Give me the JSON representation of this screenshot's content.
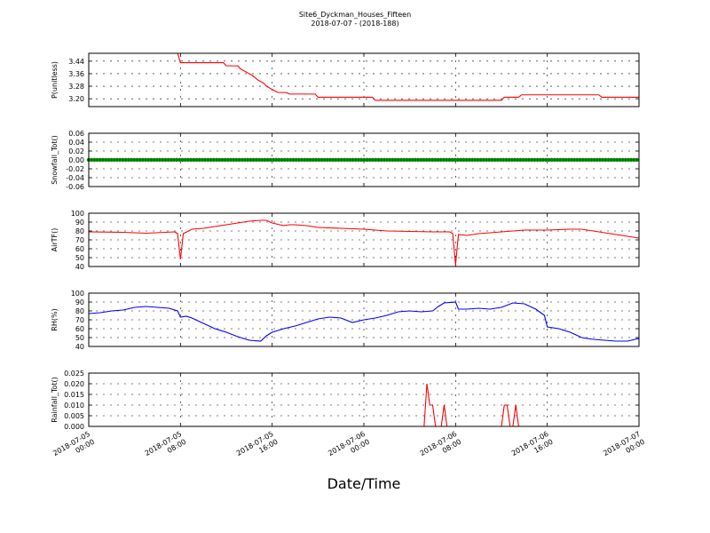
{
  "chart_data": {
    "type": "line",
    "title": "Site6_Dyckman_Houses_Fifteen",
    "subtitle": "2018-07-07 - (2018-188)",
    "xlabel": "Date/Time",
    "x_range": [
      "2018-07-05 00:00",
      "2018-07-07 00:00"
    ],
    "x_ticks": [
      [
        "2018-07-05",
        "00:00"
      ],
      [
        "2018-07-05",
        "08:00"
      ],
      [
        "2018-07-05",
        "16:00"
      ],
      [
        "2018-07-06",
        "00:00"
      ],
      [
        "2018-07-06",
        "08:00"
      ],
      [
        "2018-07-06",
        "16:00"
      ],
      [
        "2018-07-07",
        "00:00"
      ]
    ],
    "grid": true,
    "panels": [
      {
        "ylabel": "P(unitless)",
        "ylim": [
          3.15,
          3.49
        ],
        "yticks": [
          "3.20",
          "3.28",
          "3.36",
          "3.44"
        ],
        "tick_values": [
          3.2,
          3.28,
          3.36,
          3.44
        ],
        "color": "#ff0000",
        "series": [
          [
            "2018-07-05 00:00",
            3.49
          ],
          [
            "2018-07-05 07:45",
            3.49
          ],
          [
            "2018-07-05 08:00",
            3.43
          ],
          [
            "2018-07-05 11:45",
            3.43
          ],
          [
            "2018-07-05 12:00",
            3.41
          ],
          [
            "2018-07-05 13:00",
            3.41
          ],
          [
            "2018-07-05 13:15",
            3.39
          ],
          [
            "2018-07-05 13:45",
            3.37
          ],
          [
            "2018-07-05 14:15",
            3.35
          ],
          [
            "2018-07-05 14:45",
            3.32
          ],
          [
            "2018-07-05 15:15",
            3.3
          ],
          [
            "2018-07-05 15:30",
            3.28
          ],
          [
            "2018-07-05 16:00",
            3.26
          ],
          [
            "2018-07-05 16:30",
            3.24
          ],
          [
            "2018-07-05 17:15",
            3.24
          ],
          [
            "2018-07-05 17:30",
            3.23
          ],
          [
            "2018-07-05 19:45",
            3.23
          ],
          [
            "2018-07-05 20:00",
            3.21
          ],
          [
            "2018-07-06 00:45",
            3.21
          ],
          [
            "2018-07-06 01:00",
            3.19
          ],
          [
            "2018-07-06 08:00",
            3.19
          ],
          [
            "2018-07-06 12:00",
            3.19
          ],
          [
            "2018-07-06 12:15",
            3.21
          ],
          [
            "2018-07-06 13:30",
            3.21
          ],
          [
            "2018-07-06 13:45",
            3.225
          ],
          [
            "2018-07-06 20:30",
            3.225
          ],
          [
            "2018-07-06 20:45",
            3.21
          ],
          [
            "2018-07-07 00:00",
            3.21
          ]
        ]
      },
      {
        "ylabel": "Snowfall_Tot()",
        "ylim": [
          -0.06,
          0.06
        ],
        "yticks": [
          "-0.06",
          "-0.04",
          "-0.02",
          "0.00",
          "0.02",
          "0.04",
          "0.06"
        ],
        "tick_values": [
          -0.06,
          -0.04,
          -0.02,
          0.0,
          0.02,
          0.04,
          0.06
        ],
        "color": "#008000",
        "markers": true,
        "series": [
          [
            "2018-07-05 00:00",
            0.0
          ],
          [
            "2018-07-07 00:00",
            0.0
          ]
        ]
      },
      {
        "ylabel": "AirTF()",
        "ylim": [
          40,
          100
        ],
        "yticks": [
          "40",
          "50",
          "60",
          "70",
          "80",
          "90",
          "100"
        ],
        "tick_values": [
          40,
          50,
          60,
          70,
          80,
          90,
          100
        ],
        "color": "#ff0000",
        "series": [
          [
            "2018-07-05 00:00",
            79
          ],
          [
            "2018-07-05 03:00",
            78.5
          ],
          [
            "2018-07-05 05:00",
            77.5
          ],
          [
            "2018-07-05 07:30",
            79
          ],
          [
            "2018-07-05 07:45",
            77
          ],
          [
            "2018-07-05 08:00",
            48
          ],
          [
            "2018-07-05 08:15",
            77
          ],
          [
            "2018-07-05 09:00",
            82
          ],
          [
            "2018-07-05 10:00",
            83
          ],
          [
            "2018-07-05 11:00",
            85
          ],
          [
            "2018-07-05 12:00",
            87
          ],
          [
            "2018-07-05 13:00",
            89
          ],
          [
            "2018-07-05 14:00",
            91
          ],
          [
            "2018-07-05 15:00",
            92
          ],
          [
            "2018-07-05 15:30",
            92
          ],
          [
            "2018-07-05 16:00",
            89
          ],
          [
            "2018-07-05 17:00",
            86
          ],
          [
            "2018-07-05 17:30",
            87
          ],
          [
            "2018-07-05 18:00",
            87
          ],
          [
            "2018-07-05 19:00",
            86
          ],
          [
            "2018-07-05 20:00",
            84
          ],
          [
            "2018-07-05 22:00",
            83
          ],
          [
            "2018-07-06 00:00",
            82
          ],
          [
            "2018-07-06 02:00",
            80
          ],
          [
            "2018-07-06 04:00",
            79.5
          ],
          [
            "2018-07-06 06:00",
            79
          ],
          [
            "2018-07-06 07:30",
            79
          ],
          [
            "2018-07-06 07:45",
            77
          ],
          [
            "2018-07-06 08:00",
            42
          ],
          [
            "2018-07-06 08:15",
            76
          ],
          [
            "2018-07-06 09:00",
            75
          ],
          [
            "2018-07-06 10:00",
            77
          ],
          [
            "2018-07-06 11:00",
            78
          ],
          [
            "2018-07-06 12:00",
            79
          ],
          [
            "2018-07-06 14:00",
            81
          ],
          [
            "2018-07-06 16:00",
            81
          ],
          [
            "2018-07-06 18:00",
            82
          ],
          [
            "2018-07-06 19:00",
            82
          ],
          [
            "2018-07-06 20:00",
            80
          ],
          [
            "2018-07-06 22:00",
            76
          ],
          [
            "2018-07-07 00:00",
            72
          ]
        ]
      },
      {
        "ylabel": "RH(%)",
        "ylim": [
          40,
          100
        ],
        "yticks": [
          "40",
          "50",
          "60",
          "70",
          "80",
          "90",
          "100"
        ],
        "tick_values": [
          40,
          50,
          60,
          70,
          80,
          90,
          100
        ],
        "color": "#0000ff",
        "series": [
          [
            "2018-07-05 00:00",
            77
          ],
          [
            "2018-07-05 01:00",
            78
          ],
          [
            "2018-07-05 02:00",
            80
          ],
          [
            "2018-07-05 03:00",
            81
          ],
          [
            "2018-07-05 04:00",
            84
          ],
          [
            "2018-07-05 05:00",
            85
          ],
          [
            "2018-07-05 06:00",
            84
          ],
          [
            "2018-07-05 07:00",
            83
          ],
          [
            "2018-07-05 07:45",
            80
          ],
          [
            "2018-07-05 08:00",
            73
          ],
          [
            "2018-07-05 08:30",
            74
          ],
          [
            "2018-07-05 09:00",
            72
          ],
          [
            "2018-07-05 10:00",
            66
          ],
          [
            "2018-07-05 11:00",
            60
          ],
          [
            "2018-07-05 12:00",
            56
          ],
          [
            "2018-07-05 13:00",
            51
          ],
          [
            "2018-07-05 14:00",
            47
          ],
          [
            "2018-07-05 15:00",
            46
          ],
          [
            "2018-07-05 15:30",
            52
          ],
          [
            "2018-07-05 16:00",
            56
          ],
          [
            "2018-07-05 17:00",
            60
          ],
          [
            "2018-07-05 18:00",
            63
          ],
          [
            "2018-07-05 19:00",
            67
          ],
          [
            "2018-07-05 20:00",
            71
          ],
          [
            "2018-07-05 21:00",
            73
          ],
          [
            "2018-07-05 22:00",
            72
          ],
          [
            "2018-07-05 23:00",
            67
          ],
          [
            "2018-07-06 00:00",
            70
          ],
          [
            "2018-07-06 01:00",
            72
          ],
          [
            "2018-07-06 02:00",
            75
          ],
          [
            "2018-07-06 03:00",
            79
          ],
          [
            "2018-07-06 04:00",
            80
          ],
          [
            "2018-07-06 05:00",
            79
          ],
          [
            "2018-07-06 06:00",
            80
          ],
          [
            "2018-07-06 06:30",
            85
          ],
          [
            "2018-07-06 07:00",
            89
          ],
          [
            "2018-07-06 08:00",
            90
          ],
          [
            "2018-07-06 08:15",
            82
          ],
          [
            "2018-07-06 09:00",
            82
          ],
          [
            "2018-07-06 10:00",
            83
          ],
          [
            "2018-07-06 11:00",
            82
          ],
          [
            "2018-07-06 12:00",
            84
          ],
          [
            "2018-07-06 13:00",
            89
          ],
          [
            "2018-07-06 14:00",
            88
          ],
          [
            "2018-07-06 15:00",
            82
          ],
          [
            "2018-07-06 15:45",
            75
          ],
          [
            "2018-07-06 16:00",
            62
          ],
          [
            "2018-07-06 17:00",
            60
          ],
          [
            "2018-07-06 18:00",
            56
          ],
          [
            "2018-07-06 19:00",
            50
          ],
          [
            "2018-07-06 20:00",
            48
          ],
          [
            "2018-07-06 21:00",
            47
          ],
          [
            "2018-07-06 22:00",
            46
          ],
          [
            "2018-07-06 23:00",
            46
          ],
          [
            "2018-07-07 00:00",
            49
          ]
        ]
      },
      {
        "ylabel": "Rainfall_Tot()",
        "ylim": [
          0,
          0.025
        ],
        "yticks": [
          "0.000",
          "0.005",
          "0.010",
          "0.015",
          "0.020",
          "0.025"
        ],
        "tick_values": [
          0,
          0.005,
          0.01,
          0.015,
          0.02,
          0.025
        ],
        "color": "#ff0000",
        "series": [
          [
            "2018-07-05 00:00",
            0
          ],
          [
            "2018-07-06 05:15",
            0
          ],
          [
            "2018-07-06 05:30",
            0.02
          ],
          [
            "2018-07-06 05:45",
            0.01
          ],
          [
            "2018-07-06 06:00",
            0.01
          ],
          [
            "2018-07-06 06:15",
            0
          ],
          [
            "2018-07-06 06:45",
            0
          ],
          [
            "2018-07-06 07:00",
            0.01
          ],
          [
            "2018-07-06 07:15",
            0
          ],
          [
            "2018-07-06 12:00",
            0
          ],
          [
            "2018-07-06 12:15",
            0.01
          ],
          [
            "2018-07-06 12:30",
            0.01
          ],
          [
            "2018-07-06 12:45",
            0
          ],
          [
            "2018-07-06 13:00",
            0
          ],
          [
            "2018-07-06 13:15",
            0.01
          ],
          [
            "2018-07-06 13:30",
            0
          ],
          [
            "2018-07-07 00:00",
            0
          ]
        ]
      }
    ]
  }
}
